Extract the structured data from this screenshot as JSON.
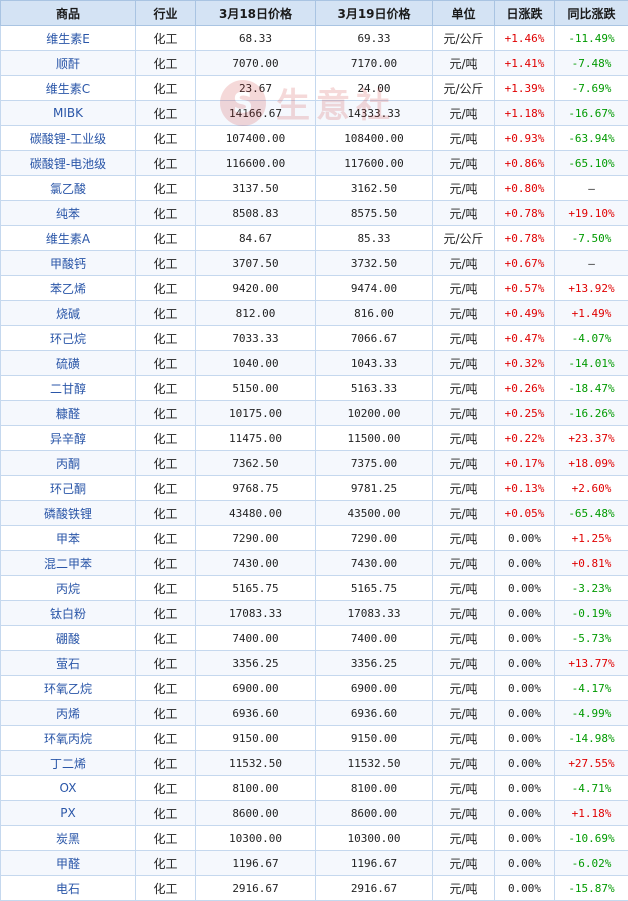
{
  "headers": [
    "商品",
    "行业",
    "3月18日价格",
    "3月19日价格",
    "单位",
    "日涨跌",
    "同比涨跌"
  ],
  "watermark": {
    "logo": "S",
    "text": "生意社"
  },
  "colors": {
    "up": "#e00000",
    "down": "#009a00",
    "header_bg": "#d4e3f4",
    "link": "#2a56a8"
  },
  "rows": [
    {
      "name": "维生素E",
      "industry": "化工",
      "p1": "68.33",
      "p2": "69.33",
      "unit": "元/公斤",
      "daily": "+1.46%",
      "yoy": "-11.49%"
    },
    {
      "name": "顺酐",
      "industry": "化工",
      "p1": "7070.00",
      "p2": "7170.00",
      "unit": "元/吨",
      "daily": "+1.41%",
      "yoy": "-7.48%"
    },
    {
      "name": "维生素C",
      "industry": "化工",
      "p1": "23.67",
      "p2": "24.00",
      "unit": "元/公斤",
      "daily": "+1.39%",
      "yoy": "-7.69%"
    },
    {
      "name": "MIBK",
      "industry": "化工",
      "p1": "14166.67",
      "p2": "14333.33",
      "unit": "元/吨",
      "daily": "+1.18%",
      "yoy": "-16.67%"
    },
    {
      "name": "碳酸锂-工业级",
      "industry": "化工",
      "p1": "107400.00",
      "p2": "108400.00",
      "unit": "元/吨",
      "daily": "+0.93%",
      "yoy": "-63.94%"
    },
    {
      "name": "碳酸锂-电池级",
      "industry": "化工",
      "p1": "116600.00",
      "p2": "117600.00",
      "unit": "元/吨",
      "daily": "+0.86%",
      "yoy": "-65.10%"
    },
    {
      "name": "氯乙酸",
      "industry": "化工",
      "p1": "3137.50",
      "p2": "3162.50",
      "unit": "元/吨",
      "daily": "+0.80%",
      "yoy": "—"
    },
    {
      "name": "纯苯",
      "industry": "化工",
      "p1": "8508.83",
      "p2": "8575.50",
      "unit": "元/吨",
      "daily": "+0.78%",
      "yoy": "+19.10%"
    },
    {
      "name": "维生素A",
      "industry": "化工",
      "p1": "84.67",
      "p2": "85.33",
      "unit": "元/公斤",
      "daily": "+0.78%",
      "yoy": "-7.50%"
    },
    {
      "name": "甲酸钙",
      "industry": "化工",
      "p1": "3707.50",
      "p2": "3732.50",
      "unit": "元/吨",
      "daily": "+0.67%",
      "yoy": "—"
    },
    {
      "name": "苯乙烯",
      "industry": "化工",
      "p1": "9420.00",
      "p2": "9474.00",
      "unit": "元/吨",
      "daily": "+0.57%",
      "yoy": "+13.92%"
    },
    {
      "name": "烧碱",
      "industry": "化工",
      "p1": "812.00",
      "p2": "816.00",
      "unit": "元/吨",
      "daily": "+0.49%",
      "yoy": "+1.49%"
    },
    {
      "name": "环己烷",
      "industry": "化工",
      "p1": "7033.33",
      "p2": "7066.67",
      "unit": "元/吨",
      "daily": "+0.47%",
      "yoy": "-4.07%"
    },
    {
      "name": "硫磺",
      "industry": "化工",
      "p1": "1040.00",
      "p2": "1043.33",
      "unit": "元/吨",
      "daily": "+0.32%",
      "yoy": "-14.01%"
    },
    {
      "name": "二甘醇",
      "industry": "化工",
      "p1": "5150.00",
      "p2": "5163.33",
      "unit": "元/吨",
      "daily": "+0.26%",
      "yoy": "-18.47%"
    },
    {
      "name": "糠醛",
      "industry": "化工",
      "p1": "10175.00",
      "p2": "10200.00",
      "unit": "元/吨",
      "daily": "+0.25%",
      "yoy": "-16.26%"
    },
    {
      "name": "异辛醇",
      "industry": "化工",
      "p1": "11475.00",
      "p2": "11500.00",
      "unit": "元/吨",
      "daily": "+0.22%",
      "yoy": "+23.37%"
    },
    {
      "name": "丙酮",
      "industry": "化工",
      "p1": "7362.50",
      "p2": "7375.00",
      "unit": "元/吨",
      "daily": "+0.17%",
      "yoy": "+18.09%"
    },
    {
      "name": "环己酮",
      "industry": "化工",
      "p1": "9768.75",
      "p2": "9781.25",
      "unit": "元/吨",
      "daily": "+0.13%",
      "yoy": "+2.60%"
    },
    {
      "name": "磷酸铁锂",
      "industry": "化工",
      "p1": "43480.00",
      "p2": "43500.00",
      "unit": "元/吨",
      "daily": "+0.05%",
      "yoy": "-65.48%"
    },
    {
      "name": "甲苯",
      "industry": "化工",
      "p1": "7290.00",
      "p2": "7290.00",
      "unit": "元/吨",
      "daily": "0.00%",
      "yoy": "+1.25%"
    },
    {
      "name": "混二甲苯",
      "industry": "化工",
      "p1": "7430.00",
      "p2": "7430.00",
      "unit": "元/吨",
      "daily": "0.00%",
      "yoy": "+0.81%"
    },
    {
      "name": "丙烷",
      "industry": "化工",
      "p1": "5165.75",
      "p2": "5165.75",
      "unit": "元/吨",
      "daily": "0.00%",
      "yoy": "-3.23%"
    },
    {
      "name": "钛白粉",
      "industry": "化工",
      "p1": "17083.33",
      "p2": "17083.33",
      "unit": "元/吨",
      "daily": "0.00%",
      "yoy": "-0.19%"
    },
    {
      "name": "硼酸",
      "industry": "化工",
      "p1": "7400.00",
      "p2": "7400.00",
      "unit": "元/吨",
      "daily": "0.00%",
      "yoy": "-5.73%"
    },
    {
      "name": "萤石",
      "industry": "化工",
      "p1": "3356.25",
      "p2": "3356.25",
      "unit": "元/吨",
      "daily": "0.00%",
      "yoy": "+13.77%"
    },
    {
      "name": "环氧乙烷",
      "industry": "化工",
      "p1": "6900.00",
      "p2": "6900.00",
      "unit": "元/吨",
      "daily": "0.00%",
      "yoy": "-4.17%"
    },
    {
      "name": "丙烯",
      "industry": "化工",
      "p1": "6936.60",
      "p2": "6936.60",
      "unit": "元/吨",
      "daily": "0.00%",
      "yoy": "-4.99%"
    },
    {
      "name": "环氧丙烷",
      "industry": "化工",
      "p1": "9150.00",
      "p2": "9150.00",
      "unit": "元/吨",
      "daily": "0.00%",
      "yoy": "-14.98%"
    },
    {
      "name": "丁二烯",
      "industry": "化工",
      "p1": "11532.50",
      "p2": "11532.50",
      "unit": "元/吨",
      "daily": "0.00%",
      "yoy": "+27.55%"
    },
    {
      "name": "OX",
      "industry": "化工",
      "p1": "8100.00",
      "p2": "8100.00",
      "unit": "元/吨",
      "daily": "0.00%",
      "yoy": "-4.71%"
    },
    {
      "name": "PX",
      "industry": "化工",
      "p1": "8600.00",
      "p2": "8600.00",
      "unit": "元/吨",
      "daily": "0.00%",
      "yoy": "+1.18%"
    },
    {
      "name": "炭黑",
      "industry": "化工",
      "p1": "10300.00",
      "p2": "10300.00",
      "unit": "元/吨",
      "daily": "0.00%",
      "yoy": "-10.69%"
    },
    {
      "name": "甲醛",
      "industry": "化工",
      "p1": "1196.67",
      "p2": "1196.67",
      "unit": "元/吨",
      "daily": "0.00%",
      "yoy": "-6.02%"
    },
    {
      "name": "电石",
      "industry": "化工",
      "p1": "2916.67",
      "p2": "2916.67",
      "unit": "元/吨",
      "daily": "0.00%",
      "yoy": "-15.87%"
    }
  ]
}
